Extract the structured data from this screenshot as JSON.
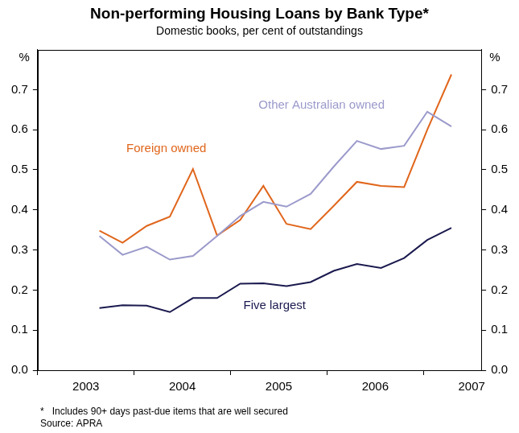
{
  "chart_data": {
    "type": "line",
    "title": "Non-performing Housing Loans by Bank Type*",
    "subtitle": "Domestic books, per cent of outstandings",
    "y_label": "%",
    "y2_label": "%",
    "notes": [
      "*   Includes 90+ days past-due items that are well secured",
      "Source: APRA"
    ],
    "x": [
      2003.64,
      2003.88,
      2004.13,
      2004.37,
      2004.61,
      2004.86,
      2005.1,
      2005.34,
      2005.58,
      2005.83,
      2006.07,
      2006.31,
      2006.56,
      2006.8,
      2007.04,
      2007.29
    ],
    "series": [
      {
        "name": "Other Australian owned",
        "color": "#9b9acb",
        "values": [
          0.335,
          0.288,
          0.308,
          0.276,
          0.285,
          0.335,
          0.385,
          0.42,
          0.408,
          0.44,
          0.508,
          0.572,
          0.552,
          0.56,
          0.645,
          0.608
        ]
      },
      {
        "name": "Foreign owned",
        "color": "#e0661c",
        "values": [
          0.348,
          0.318,
          0.36,
          0.383,
          0.502,
          0.336,
          0.375,
          0.46,
          0.365,
          0.352,
          0.41,
          0.47,
          0.46,
          0.457,
          0.6,
          0.738
        ]
      },
      {
        "name": "Five largest",
        "color": "#1b1a4f",
        "values": [
          0.155,
          0.162,
          0.161,
          0.145,
          0.18,
          0.18,
          0.216,
          0.217,
          0.21,
          0.22,
          0.248,
          0.265,
          0.255,
          0.28,
          0.325,
          0.355
        ]
      }
    ],
    "xlim": [
      2003,
      2007.6
    ],
    "xticks": [
      2003,
      2004,
      2005,
      2006,
      2007
    ],
    "ylim": [
      0,
      0.8
    ],
    "yticks": [
      {
        "value": 0,
        "label": "0.0"
      },
      0.1,
      0.2,
      0.3,
      0.4,
      0.5,
      0.6,
      0.7
    ],
    "y2lim": [
      0,
      0.8
    ],
    "y2ticks": [
      {
        "value": 0,
        "label": "0.0"
      },
      0.1,
      0.2,
      0.3,
      0.4,
      0.5,
      0.6,
      0.7
    ],
    "grid": false
  }
}
